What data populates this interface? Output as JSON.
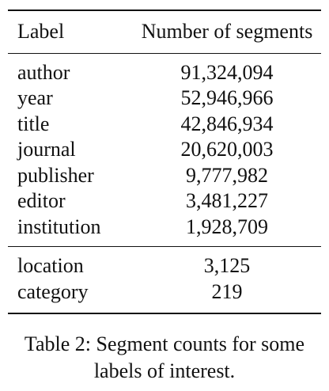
{
  "table": {
    "headers": {
      "label": "Label",
      "count": "Number of segments"
    },
    "groups": [
      [
        {
          "label": "author",
          "count": "91,324,094"
        },
        {
          "label": "year",
          "count": "52,946,966"
        },
        {
          "label": "title",
          "count": "42,846,934"
        },
        {
          "label": "journal",
          "count": "20,620,003"
        },
        {
          "label": "publisher",
          "count": "9,777,982"
        },
        {
          "label": "editor",
          "count": "3,481,227"
        },
        {
          "label": "institution",
          "count": "1,928,709"
        }
      ],
      [
        {
          "label": "location",
          "count": "3,125"
        },
        {
          "label": "category",
          "count": "219"
        }
      ]
    ]
  },
  "caption": {
    "line1": "Table 2: Segment counts for some",
    "line2": "labels of interest."
  }
}
